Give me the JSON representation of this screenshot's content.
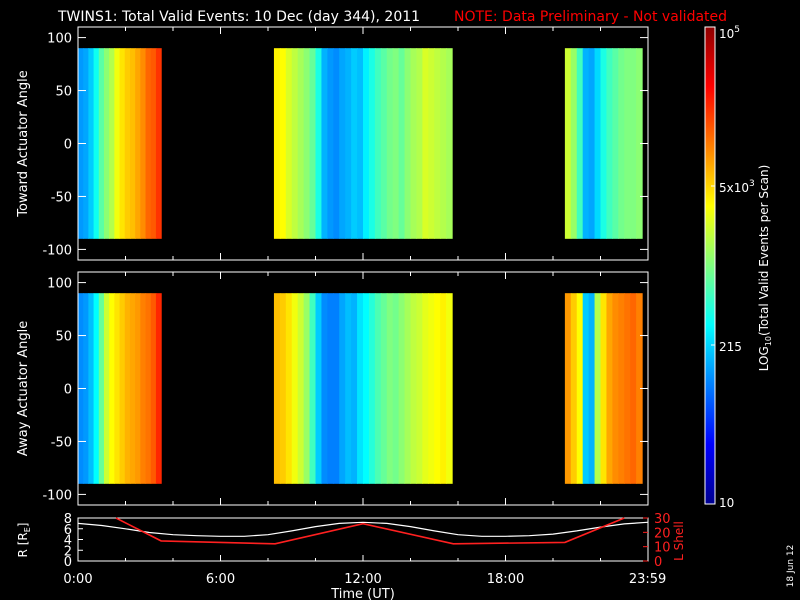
{
  "header": {
    "title": "TWINS1: Total Valid Events: 10 Dec (day 344), 2011",
    "note": "NOTE: Data Preliminary - Not validated"
  },
  "datestamp": "18 Jun 12",
  "colors": {
    "background": "#000000",
    "axes": "#ffffff",
    "note": "#ff0000",
    "l_shell": "#ff2020",
    "radius": "#ffffff"
  },
  "chart_data": [
    {
      "type": "heatmap",
      "id": "toward",
      "ylabel": "Toward Actuator Angle",
      "ylim": [
        -110,
        110
      ],
      "yticks": [
        100,
        50,
        0,
        -50,
        -100
      ],
      "xlim": [
        0,
        24
      ],
      "data_ylim": [
        -90,
        90
      ],
      "segments": [
        {
          "start": "0:00",
          "end": "3:30",
          "values": [
            2.1,
            2.15,
            2.3,
            2.55,
            2.85,
            3.05,
            3.2,
            3.45,
            3.6,
            3.7,
            3.75,
            3.85,
            3.95,
            4.1,
            4.15,
            4.3
          ]
        },
        {
          "start": "8:15",
          "end": "15:45",
          "values": [
            3.55,
            3.5,
            3.35,
            3.25,
            3.15,
            3.05,
            2.9,
            2.6,
            2.2,
            2.1,
            2.05,
            2.15,
            2.2,
            2.3,
            2.25,
            2.45,
            2.6,
            2.75,
            2.85,
            2.95,
            3.0,
            2.9,
            3.05,
            3.15,
            3.2,
            3.35,
            3.3,
            3.25,
            3.2,
            3.15
          ]
        },
        {
          "start": "20:30",
          "end": "23:45",
          "values": [
            3.3,
            3.1,
            2.75,
            2.2,
            2.15,
            2.35,
            2.6,
            2.75,
            2.85,
            2.95,
            3.0,
            3.0,
            3.05
          ]
        }
      ]
    },
    {
      "type": "heatmap",
      "id": "away",
      "ylabel": "Away Actuator Angle",
      "ylim": [
        -110,
        110
      ],
      "yticks": [
        100,
        50,
        0,
        -50,
        -100
      ],
      "xlim": [
        0,
        24
      ],
      "data_ylim": [
        -90,
        90
      ],
      "segments": [
        {
          "start": "0:00",
          "end": "3:30",
          "values": [
            2.05,
            2.1,
            2.25,
            2.5,
            2.9,
            3.3,
            3.5,
            3.6,
            3.7,
            3.8,
            3.85,
            3.9,
            4.0,
            4.05,
            4.15,
            4.35
          ]
        },
        {
          "start": "8:15",
          "end": "15:45",
          "values": [
            3.75,
            3.7,
            3.6,
            3.45,
            3.3,
            3.1,
            2.75,
            2.3,
            2.05,
            2.0,
            2.0,
            2.15,
            2.25,
            2.2,
            2.4,
            2.5,
            2.65,
            2.8,
            2.9,
            3.0,
            2.95,
            3.05,
            3.15,
            3.25,
            3.3,
            3.4,
            3.45,
            3.5,
            3.55,
            3.45
          ]
        },
        {
          "start": "20:30",
          "end": "23:45",
          "values": [
            3.9,
            3.7,
            3.5,
            2.3,
            2.2,
            3.2,
            3.6,
            3.85,
            3.95,
            4.0,
            4.05,
            4.1,
            4.0
          ]
        }
      ]
    },
    {
      "type": "line",
      "id": "orbit",
      "ylabel_left": "R [R",
      "ylabel_left_sub": "E",
      "ylabel_left_tail": "]",
      "ylabel_right": "L Shell",
      "ylim_left": [
        0,
        8
      ],
      "yticks_left": [
        0,
        2,
        4,
        6,
        8
      ],
      "ylim_right": [
        0,
        30
      ],
      "yticks_right": [
        0,
        10,
        20,
        30
      ],
      "xlim": [
        0,
        24
      ],
      "xticks": [
        "0:00",
        "6:00",
        "12:00",
        "18:00",
        "23:59"
      ],
      "xlabel": "Time (UT)",
      "series": [
        {
          "axis": "left",
          "color": "#ffffff",
          "x": [
            0,
            1,
            2,
            3,
            4,
            5,
            6,
            7,
            8,
            9,
            10,
            11,
            12,
            13,
            14,
            15,
            16,
            17,
            18,
            19,
            20,
            21,
            22,
            23,
            23.98
          ],
          "y": [
            7.0,
            6.6,
            6.0,
            5.3,
            4.9,
            4.7,
            4.6,
            4.6,
            4.9,
            5.6,
            6.4,
            7.0,
            7.2,
            7.0,
            6.4,
            5.6,
            4.9,
            4.6,
            4.6,
            4.7,
            5.0,
            5.6,
            6.3,
            6.9,
            7.2
          ]
        },
        {
          "axis": "right",
          "color": "#ff2020",
          "x": [
            1.6,
            3.5,
            8.3,
            12.0,
            15.8,
            20.5,
            23.0
          ],
          "y": [
            30,
            14,
            12,
            26,
            12,
            13,
            30
          ]
        }
      ]
    }
  ],
  "colorbar": {
    "label_main": "LOG",
    "label_sub": "10",
    "label_rest": "(Total Valid Events per Scan)",
    "tick_top_base": "10",
    "tick_top_exp": "5",
    "tick_mid_main": "5x10",
    "tick_mid_exp": "3",
    "tick_low": "215",
    "tick_bottom": "10",
    "log_range": [
      1,
      5
    ]
  }
}
